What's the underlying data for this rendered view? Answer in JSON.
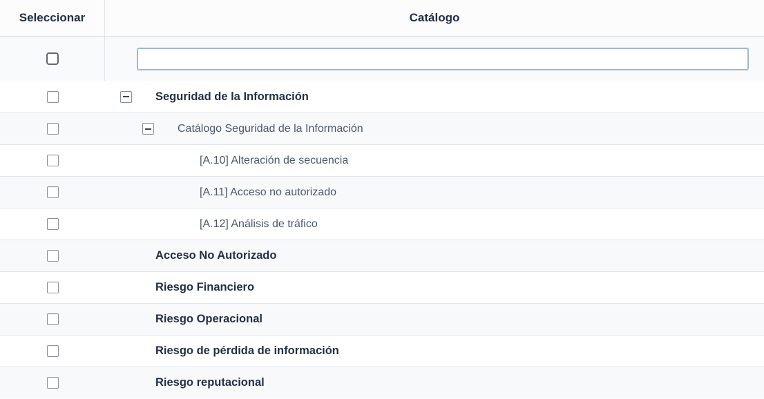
{
  "table": {
    "columns": [
      "Seleccionar",
      "Catálogo"
    ],
    "filter": {
      "value": "",
      "placeholder": ""
    },
    "select_all_checked": false,
    "rows": [
      {
        "label": "Seguridad de la Información",
        "bold": true,
        "indent": 0,
        "expanded": true,
        "icon": "minus-square-icon",
        "checked": false
      },
      {
        "label": "Catálogo Seguridad de la Información",
        "bold": false,
        "indent": 1,
        "expanded": true,
        "icon": "minus-square-icon",
        "checked": false
      },
      {
        "label": "[A.10] Alteración de secuencia",
        "bold": false,
        "indent": 2,
        "expanded": false,
        "icon": "",
        "checked": false
      },
      {
        "label": "[A.11] Acceso no autorizado",
        "bold": false,
        "indent": 2,
        "expanded": false,
        "icon": "",
        "checked": false
      },
      {
        "label": "[A.12] Análisis de tráfico",
        "bold": false,
        "indent": 2,
        "expanded": false,
        "icon": "",
        "checked": false
      },
      {
        "label": "Acceso No Autorizado",
        "bold": true,
        "indent": 0,
        "expanded": false,
        "icon": "",
        "checked": false
      },
      {
        "label": "Riesgo Financiero",
        "bold": true,
        "indent": 0,
        "expanded": false,
        "icon": "",
        "checked": false
      },
      {
        "label": "Riesgo Operacional",
        "bold": true,
        "indent": 0,
        "expanded": false,
        "icon": "",
        "checked": false
      },
      {
        "label": "Riesgo de pérdida de información",
        "bold": true,
        "indent": 0,
        "expanded": false,
        "icon": "",
        "checked": false
      },
      {
        "label": "Riesgo reputacional",
        "bold": true,
        "indent": 0,
        "expanded": false,
        "icon": "",
        "checked": false
      }
    ]
  },
  "colors": {
    "accent-border": "#9fb9d0",
    "text-dark": "#242f44",
    "text-regular": "#4c5868",
    "row-border": "#e2e4e7",
    "alt-bg": "#f8f9fa"
  }
}
